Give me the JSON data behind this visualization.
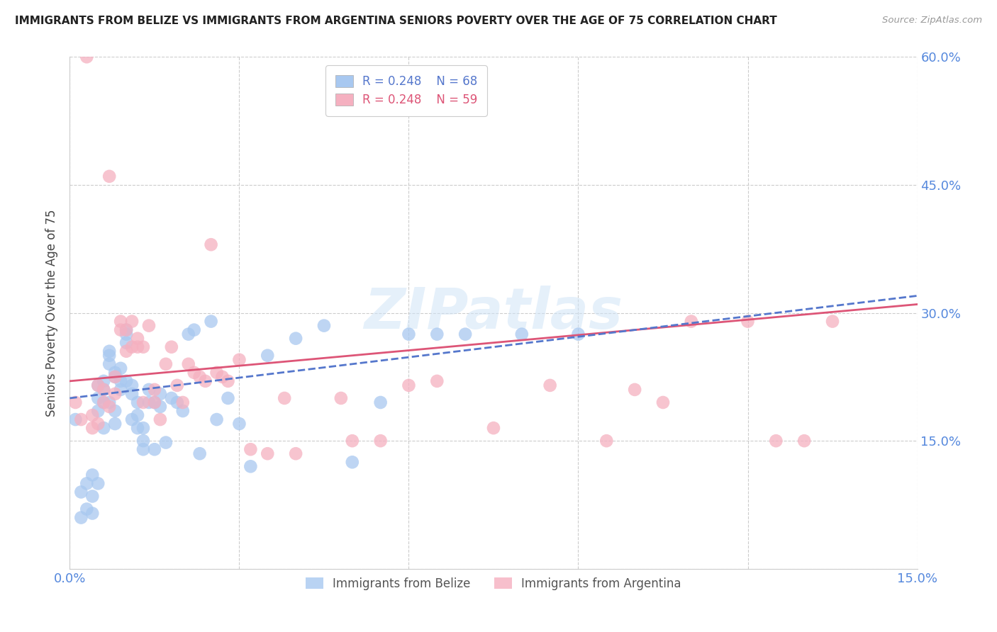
{
  "title": "IMMIGRANTS FROM BELIZE VS IMMIGRANTS FROM ARGENTINA SENIORS POVERTY OVER THE AGE OF 75 CORRELATION CHART",
  "source": "Source: ZipAtlas.com",
  "ylabel": "Seniors Poverty Over the Age of 75",
  "xlim": [
    0.0,
    0.15
  ],
  "ylim": [
    0.0,
    0.6
  ],
  "xticks": [
    0.0,
    0.03,
    0.06,
    0.09,
    0.12,
    0.15
  ],
  "yticks": [
    0.0,
    0.15,
    0.3,
    0.45,
    0.6
  ],
  "xtick_labels": [
    "0.0%",
    "",
    "",
    "",
    "",
    "15.0%"
  ],
  "ytick_labels_right": [
    "",
    "15.0%",
    "30.0%",
    "45.0%",
    "60.0%"
  ],
  "belize_color": "#a8c8f0",
  "argentina_color": "#f5b0c0",
  "belize_line_color": "#5577cc",
  "argentina_line_color": "#dd5577",
  "legend_R_belize": "0.248",
  "legend_N_belize": "68",
  "legend_R_argentina": "0.248",
  "legend_N_argentina": "59",
  "watermark": "ZIPatlas",
  "belize_x": [
    0.001,
    0.002,
    0.002,
    0.003,
    0.003,
    0.004,
    0.004,
    0.004,
    0.005,
    0.005,
    0.005,
    0.005,
    0.006,
    0.006,
    0.006,
    0.006,
    0.007,
    0.007,
    0.007,
    0.007,
    0.008,
    0.008,
    0.008,
    0.008,
    0.009,
    0.009,
    0.009,
    0.01,
    0.01,
    0.01,
    0.01,
    0.011,
    0.011,
    0.011,
    0.012,
    0.012,
    0.012,
    0.013,
    0.013,
    0.013,
    0.014,
    0.014,
    0.015,
    0.015,
    0.016,
    0.016,
    0.017,
    0.018,
    0.019,
    0.02,
    0.021,
    0.022,
    0.023,
    0.025,
    0.026,
    0.028,
    0.03,
    0.032,
    0.035,
    0.04,
    0.045,
    0.05,
    0.055,
    0.06,
    0.065,
    0.07,
    0.08,
    0.09
  ],
  "belize_y": [
    0.175,
    0.09,
    0.06,
    0.1,
    0.07,
    0.11,
    0.085,
    0.065,
    0.215,
    0.2,
    0.185,
    0.1,
    0.22,
    0.21,
    0.195,
    0.165,
    0.255,
    0.25,
    0.24,
    0.195,
    0.23,
    0.225,
    0.185,
    0.17,
    0.235,
    0.22,
    0.21,
    0.28,
    0.275,
    0.265,
    0.22,
    0.215,
    0.205,
    0.175,
    0.195,
    0.18,
    0.165,
    0.165,
    0.15,
    0.14,
    0.21,
    0.195,
    0.195,
    0.14,
    0.205,
    0.19,
    0.148,
    0.2,
    0.195,
    0.185,
    0.275,
    0.28,
    0.135,
    0.29,
    0.175,
    0.2,
    0.17,
    0.12,
    0.25,
    0.27,
    0.285,
    0.125,
    0.195,
    0.275,
    0.275,
    0.275,
    0.275,
    0.275
  ],
  "argentina_x": [
    0.001,
    0.002,
    0.003,
    0.004,
    0.004,
    0.005,
    0.005,
    0.006,
    0.006,
    0.007,
    0.007,
    0.008,
    0.008,
    0.009,
    0.009,
    0.01,
    0.01,
    0.011,
    0.011,
    0.012,
    0.012,
    0.013,
    0.013,
    0.014,
    0.015,
    0.015,
    0.016,
    0.017,
    0.018,
    0.019,
    0.02,
    0.021,
    0.022,
    0.023,
    0.024,
    0.025,
    0.026,
    0.027,
    0.028,
    0.03,
    0.032,
    0.035,
    0.038,
    0.04,
    0.048,
    0.05,
    0.055,
    0.06,
    0.065,
    0.075,
    0.085,
    0.095,
    0.1,
    0.105,
    0.11,
    0.12,
    0.125,
    0.13,
    0.135
  ],
  "argentina_y": [
    0.195,
    0.175,
    0.6,
    0.18,
    0.165,
    0.215,
    0.17,
    0.21,
    0.195,
    0.46,
    0.19,
    0.225,
    0.205,
    0.29,
    0.28,
    0.28,
    0.255,
    0.26,
    0.29,
    0.27,
    0.26,
    0.26,
    0.195,
    0.285,
    0.21,
    0.195,
    0.175,
    0.24,
    0.26,
    0.215,
    0.195,
    0.24,
    0.23,
    0.225,
    0.22,
    0.38,
    0.23,
    0.225,
    0.22,
    0.245,
    0.14,
    0.135,
    0.2,
    0.135,
    0.2,
    0.15,
    0.15,
    0.215,
    0.22,
    0.165,
    0.215,
    0.15,
    0.21,
    0.195,
    0.29,
    0.29,
    0.15,
    0.15,
    0.29
  ]
}
